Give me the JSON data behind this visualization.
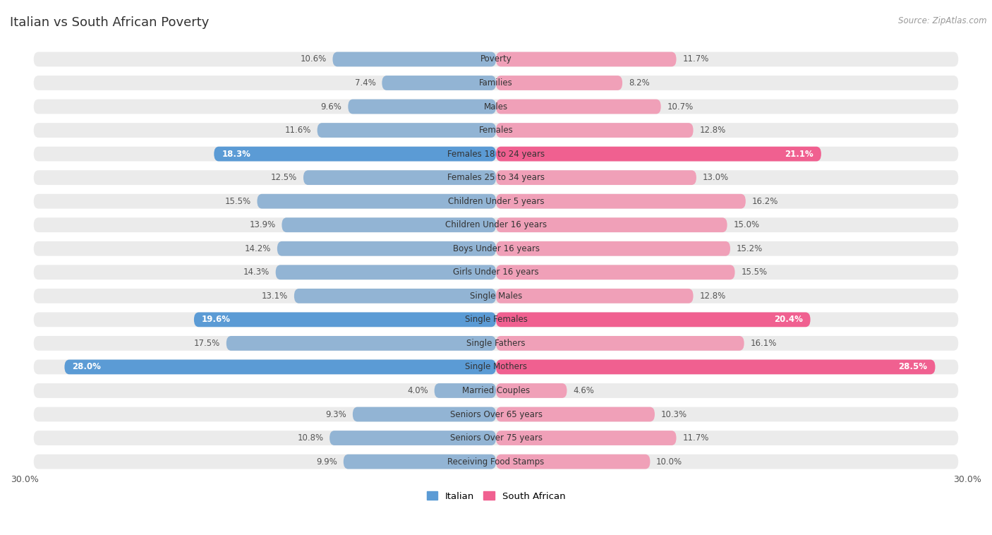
{
  "title": "Italian vs South African Poverty",
  "source": "Source: ZipAtlas.com",
  "categories": [
    "Poverty",
    "Families",
    "Males",
    "Females",
    "Females 18 to 24 years",
    "Females 25 to 34 years",
    "Children Under 5 years",
    "Children Under 16 years",
    "Boys Under 16 years",
    "Girls Under 16 years",
    "Single Males",
    "Single Females",
    "Single Fathers",
    "Single Mothers",
    "Married Couples",
    "Seniors Over 65 years",
    "Seniors Over 75 years",
    "Receiving Food Stamps"
  ],
  "italian": [
    10.6,
    7.4,
    9.6,
    11.6,
    18.3,
    12.5,
    15.5,
    13.9,
    14.2,
    14.3,
    13.1,
    19.6,
    17.5,
    28.0,
    4.0,
    9.3,
    10.8,
    9.9
  ],
  "south_african": [
    11.7,
    8.2,
    10.7,
    12.8,
    21.1,
    13.0,
    16.2,
    15.0,
    15.2,
    15.5,
    12.8,
    20.4,
    16.1,
    28.5,
    4.6,
    10.3,
    11.7,
    10.0
  ],
  "italian_color_normal": "#92b4d4",
  "italian_color_highlight": "#5b9bd5",
  "south_african_color_normal": "#f0a0b8",
  "south_african_color_highlight": "#f06090",
  "highlight_rows": [
    4,
    11,
    13
  ],
  "background_color": "#ffffff",
  "row_bg_color": "#ebebeb",
  "max_val": 30.0,
  "legend_italian": "Italian",
  "legend_south_african": "South African"
}
